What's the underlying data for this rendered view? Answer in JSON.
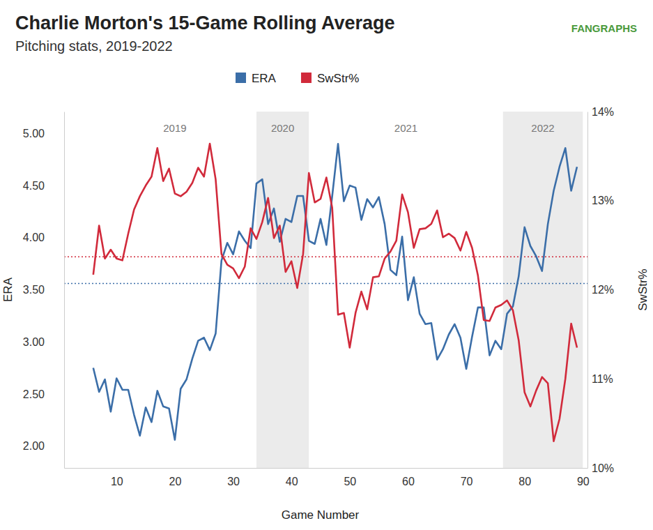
{
  "chart_data": {
    "type": "line",
    "title": "Charlie Morton's 15-Game Rolling Average",
    "subtitle": "Pitching stats, 2019-2022",
    "logo": "FANGRAPHS",
    "x_label": "Game Number",
    "y_label": "ERA",
    "y2_label": "SwStr%",
    "grid": false,
    "legend": "top",
    "xlim": [
      1,
      90.8
    ],
    "xticks": [
      10,
      20,
      30,
      40,
      50,
      60,
      70,
      80,
      90
    ],
    "ylim": [
      1.79,
      5.21
    ],
    "yticks": [
      {
        "value": 2,
        "label": "2.00"
      },
      {
        "value": 2.5,
        "label": "2.50"
      },
      {
        "value": 3,
        "label": "3.00"
      },
      {
        "value": 3.5,
        "label": "3.50"
      },
      {
        "value": 4,
        "label": "4.00"
      },
      {
        "value": 4.5,
        "label": "4.50"
      },
      {
        "value": 5,
        "label": "5.00"
      }
    ],
    "y2lim": [
      10,
      14
    ],
    "y2ticks": [
      {
        "value": 10,
        "label": "10%"
      },
      {
        "value": 11,
        "label": "11%"
      },
      {
        "value": 12,
        "label": "12%"
      },
      {
        "value": 13,
        "label": "13%"
      },
      {
        "value": 14,
        "label": "14%"
      }
    ],
    "seasons": [
      {
        "label": "2019",
        "start": 6,
        "end": 34
      },
      {
        "label": "2020",
        "start": 34,
        "end": 43
      },
      {
        "label": "2021",
        "start": 43,
        "end": 76.3
      },
      {
        "label": "2022",
        "start": 76.3,
        "end": 90
      }
    ],
    "x": [
      6,
      7,
      8,
      9,
      10,
      11,
      12,
      13,
      14,
      15,
      16,
      17,
      18,
      19,
      20,
      21,
      22,
      23,
      24,
      25,
      26,
      27,
      28,
      29,
      30,
      31,
      32,
      33,
      34,
      35,
      36,
      37,
      38,
      39,
      40,
      41,
      42,
      43,
      44,
      45,
      46,
      47,
      48,
      49,
      50,
      51,
      52,
      53,
      54,
      55,
      56,
      57,
      58,
      59,
      60,
      61,
      62,
      63,
      64,
      65,
      66,
      67,
      68,
      69,
      70,
      71,
      72,
      73,
      74,
      75,
      76,
      77,
      78,
      79,
      80,
      81,
      82,
      83,
      84,
      85,
      86,
      87,
      88,
      89
    ],
    "series": [
      {
        "name": "ERA",
        "color": "#3b6ea8",
        "average": 3.56,
        "values": [
          2.75,
          2.52,
          2.64,
          2.33,
          2.65,
          2.54,
          2.54,
          2.3,
          2.1,
          2.37,
          2.23,
          2.53,
          2.38,
          2.36,
          2.06,
          2.55,
          2.64,
          2.84,
          3.01,
          3.04,
          2.92,
          3.08,
          3.78,
          3.95,
          3.84,
          4.06,
          3.97,
          3.9,
          4.52,
          4.56,
          4.13,
          4.28,
          3.96,
          4.18,
          4.15,
          4.4,
          4.4,
          3.97,
          3.94,
          4.18,
          3.93,
          4.4,
          4.9,
          4.35,
          4.5,
          4.48,
          4.17,
          4.37,
          4.29,
          4.39,
          4.13,
          3.69,
          3.64,
          4.01,
          3.4,
          3.62,
          3.27,
          3.17,
          3.18,
          2.83,
          2.93,
          3.07,
          3.17,
          3.04,
          2.74,
          3.05,
          3.33,
          3.33,
          2.87,
          3.01,
          2.93,
          3.27,
          3.34,
          3.63,
          4.1,
          3.92,
          3.82,
          3.68,
          4.13,
          4.45,
          4.68,
          4.86,
          4.45,
          4.68
        ]
      },
      {
        "name": "SwStr%",
        "color": "#d12a3b",
        "axis": "y2",
        "average": 12.37,
        "values": [
          12.17,
          12.72,
          12.35,
          12.45,
          12.35,
          12.33,
          12.63,
          12.9,
          13.05,
          13.17,
          13.27,
          13.59,
          13.22,
          13.36,
          13.08,
          13.05,
          13.1,
          13.2,
          13.37,
          13.27,
          13.64,
          13.24,
          12.4,
          12.28,
          12.24,
          12.13,
          12.26,
          12.69,
          12.57,
          12.76,
          13.03,
          12.58,
          12.72,
          12.2,
          12.32,
          12.02,
          12.4,
          13.31,
          12.98,
          13.02,
          13.26,
          12.92,
          11.72,
          11.74,
          11.35,
          11.74,
          11.98,
          11.78,
          12.14,
          12.15,
          12.35,
          12.43,
          12.55,
          13.07,
          12.87,
          12.47,
          12.68,
          12.69,
          12.74,
          12.89,
          12.59,
          12.63,
          12.58,
          12.44,
          12.65,
          12.47,
          12.16,
          11.66,
          11.65,
          11.8,
          11.83,
          11.88,
          11.77,
          11.43,
          10.85,
          10.69,
          10.87,
          11.02,
          10.95,
          10.3,
          10.55,
          11.0,
          11.62,
          11.35
        ]
      }
    ]
  }
}
